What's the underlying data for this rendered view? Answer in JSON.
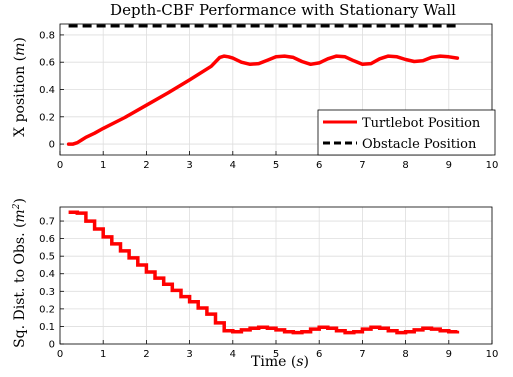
{
  "chart_data": [
    {
      "type": "line",
      "title": "Depth-CBF Performance with Stationary Wall",
      "xlabel": "",
      "ylabel": "X position (m)",
      "xlim": [
        0,
        10
      ],
      "ylim": [
        -0.08,
        0.88
      ],
      "xticks": [
        "0",
        "1",
        "2",
        "3",
        "4",
        "5",
        "6",
        "7",
        "8",
        "9",
        "10"
      ],
      "yticks": [
        {
          "value": 0,
          "label": "0"
        },
        {
          "value": 0.2,
          "label": "0.2"
        },
        {
          "value": 0.4,
          "label": "0.4"
        },
        {
          "value": 0.6,
          "label": "0.6"
        },
        {
          "value": 0.8,
          "label": "0.8"
        }
      ],
      "grid": true,
      "legend_position": "bottom-right",
      "series": [
        {
          "name": "Turtlebot Position",
          "color": "#ff0000",
          "style": "solid",
          "points": [
            [
              0.2,
              0.0
            ],
            [
              0.3,
              0.0
            ],
            [
              0.4,
              0.01
            ],
            [
              0.5,
              0.03
            ],
            [
              0.6,
              0.05
            ],
            [
              0.8,
              0.08
            ],
            [
              1.0,
              0.115
            ],
            [
              1.5,
              0.195
            ],
            [
              2.0,
              0.285
            ],
            [
              2.5,
              0.375
            ],
            [
              3.0,
              0.47
            ],
            [
              3.5,
              0.57
            ],
            [
              3.7,
              0.635
            ],
            [
              3.8,
              0.645
            ],
            [
              3.9,
              0.64
            ],
            [
              4.0,
              0.63
            ],
            [
              4.2,
              0.6
            ],
            [
              4.4,
              0.585
            ],
            [
              4.6,
              0.59
            ],
            [
              4.8,
              0.615
            ],
            [
              5.0,
              0.64
            ],
            [
              5.2,
              0.645
            ],
            [
              5.4,
              0.635
            ],
            [
              5.6,
              0.605
            ],
            [
              5.8,
              0.585
            ],
            [
              6.0,
              0.595
            ],
            [
              6.2,
              0.625
            ],
            [
              6.4,
              0.645
            ],
            [
              6.6,
              0.64
            ],
            [
              6.8,
              0.61
            ],
            [
              7.0,
              0.585
            ],
            [
              7.2,
              0.59
            ],
            [
              7.4,
              0.625
            ],
            [
              7.6,
              0.645
            ],
            [
              7.8,
              0.64
            ],
            [
              8.0,
              0.62
            ],
            [
              8.2,
              0.605
            ],
            [
              8.4,
              0.61
            ],
            [
              8.6,
              0.635
            ],
            [
              8.8,
              0.645
            ],
            [
              9.0,
              0.64
            ],
            [
              9.2,
              0.63
            ]
          ]
        },
        {
          "name": "Obstacle Position",
          "color": "#000000",
          "style": "dashed",
          "points": [
            [
              0.2,
              0.865
            ],
            [
              9.2,
              0.865
            ]
          ]
        }
      ]
    },
    {
      "type": "line",
      "title": "",
      "xlabel": "Time (s)",
      "ylabel": "Sq. Dist. to Obs. (m²)",
      "xlim": [
        0,
        10
      ],
      "ylim": [
        0,
        0.78
      ],
      "xticks": [
        "0",
        "1",
        "2",
        "3",
        "4",
        "5",
        "6",
        "7",
        "8",
        "9",
        "10"
      ],
      "yticks": [
        {
          "value": 0,
          "label": "0"
        },
        {
          "value": 0.1,
          "label": "0.1"
        },
        {
          "value": 0.2,
          "label": "0.2"
        },
        {
          "value": 0.3,
          "label": "0.3"
        },
        {
          "value": 0.4,
          "label": "0.4"
        },
        {
          "value": 0.5,
          "label": "0.5"
        },
        {
          "value": 0.6,
          "label": "0.6"
        },
        {
          "value": 0.7,
          "label": "0.7"
        }
      ],
      "grid": true,
      "series": [
        {
          "color": "#ff0000",
          "style": "solid",
          "points": [
            [
              0.2,
              0.75
            ],
            [
              0.4,
              0.745
            ],
            [
              0.6,
              0.7
            ],
            [
              0.8,
              0.655
            ],
            [
              1.0,
              0.61
            ],
            [
              1.2,
              0.57
            ],
            [
              1.4,
              0.53
            ],
            [
              1.6,
              0.49
            ],
            [
              1.8,
              0.45
            ],
            [
              2.0,
              0.41
            ],
            [
              2.2,
              0.375
            ],
            [
              2.4,
              0.34
            ],
            [
              2.6,
              0.305
            ],
            [
              2.8,
              0.27
            ],
            [
              3.0,
              0.24
            ],
            [
              3.2,
              0.205
            ],
            [
              3.4,
              0.17
            ],
            [
              3.6,
              0.12
            ],
            [
              3.8,
              0.075
            ],
            [
              4.0,
              0.07
            ],
            [
              4.2,
              0.08
            ],
            [
              4.4,
              0.09
            ],
            [
              4.6,
              0.095
            ],
            [
              4.8,
              0.09
            ],
            [
              5.0,
              0.08
            ],
            [
              5.2,
              0.07
            ],
            [
              5.4,
              0.065
            ],
            [
              5.6,
              0.07
            ],
            [
              5.8,
              0.085
            ],
            [
              6.0,
              0.095
            ],
            [
              6.2,
              0.09
            ],
            [
              6.4,
              0.075
            ],
            [
              6.6,
              0.065
            ],
            [
              6.8,
              0.07
            ],
            [
              7.0,
              0.085
            ],
            [
              7.2,
              0.095
            ],
            [
              7.4,
              0.09
            ],
            [
              7.6,
              0.075
            ],
            [
              7.8,
              0.065
            ],
            [
              8.0,
              0.07
            ],
            [
              8.2,
              0.08
            ],
            [
              8.4,
              0.09
            ],
            [
              8.6,
              0.085
            ],
            [
              8.8,
              0.075
            ],
            [
              9.0,
              0.07
            ],
            [
              9.2,
              0.075
            ]
          ]
        }
      ]
    }
  ]
}
